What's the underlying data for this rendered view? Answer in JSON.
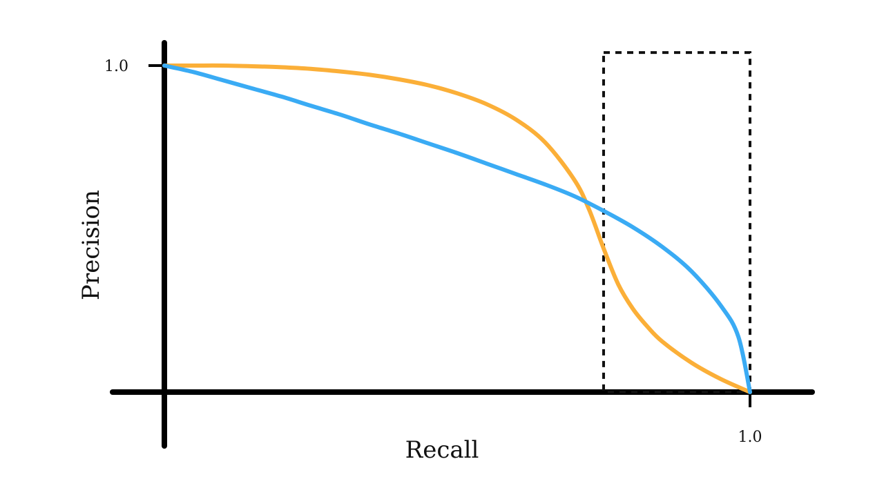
{
  "chart_data": {
    "type": "line",
    "title": "",
    "xlabel": "Recall",
    "ylabel": "Precision",
    "xlim": [
      0,
      1.0
    ],
    "ylim": [
      0,
      1.0
    ],
    "x_ticks": [
      "1.0"
    ],
    "y_ticks": [
      "1.0"
    ],
    "grid": false,
    "series": [
      {
        "color": "#FBAF38",
        "x": [
          0.0,
          0.05,
          0.1,
          0.15,
          0.2,
          0.25,
          0.3,
          0.35,
          0.4,
          0.45,
          0.5,
          0.55,
          0.6,
          0.65,
          0.7,
          0.725,
          0.75,
          0.775,
          0.8,
          0.825,
          0.85,
          0.9,
          0.95,
          1.0
        ],
        "y": [
          1.0,
          1.0,
          1.0,
          0.998,
          0.995,
          0.99,
          0.982,
          0.972,
          0.958,
          0.94,
          0.915,
          0.882,
          0.835,
          0.765,
          0.65,
          0.56,
          0.44,
          0.33,
          0.255,
          0.2,
          0.155,
          0.09,
          0.04,
          0.0
        ]
      },
      {
        "color": "#3AABF4",
        "x": [
          0.0,
          0.05,
          0.1,
          0.15,
          0.2,
          0.25,
          0.3,
          0.35,
          0.4,
          0.45,
          0.5,
          0.55,
          0.6,
          0.65,
          0.7,
          0.75,
          0.8,
          0.85,
          0.9,
          0.95,
          0.98,
          1.0
        ],
        "y": [
          1.0,
          0.98,
          0.955,
          0.93,
          0.905,
          0.877,
          0.85,
          0.82,
          0.792,
          0.762,
          0.732,
          0.7,
          0.668,
          0.636,
          0.6,
          0.555,
          0.505,
          0.445,
          0.37,
          0.265,
          0.17,
          0.0
        ]
      }
    ],
    "annotations": [
      {
        "type": "dashed-rectangle",
        "x_range": [
          0.75,
          1.0
        ],
        "y_range": [
          0,
          1.04
        ],
        "color": "#111111"
      }
    ],
    "colors": {
      "axis": "#000000",
      "text": "#111111"
    }
  }
}
